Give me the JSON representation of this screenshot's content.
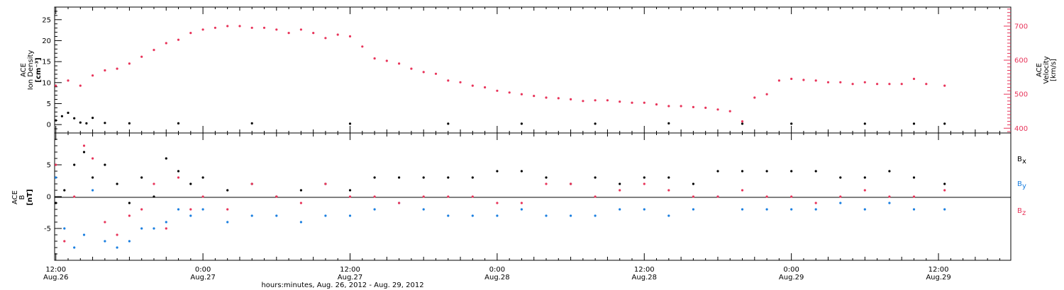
{
  "colors": {
    "black": "#000000",
    "red": "#e8345a",
    "blue": "#1a7fe0"
  },
  "xaxis": {
    "label": "hours:minutes, Aug. 26, 2012 - Aug. 29, 2012",
    "ticks": [
      {
        "hours": 12,
        "line1": "12:00",
        "line2": "Aug.26"
      },
      {
        "hours": 24,
        "line1": "0:00",
        "line2": "Aug.27"
      },
      {
        "hours": 36,
        "line1": "12:00",
        "line2": "Aug.27"
      },
      {
        "hours": 48,
        "line1": "0:00",
        "line2": "Aug.28"
      },
      {
        "hours": 60,
        "line1": "12:00",
        "line2": "Aug.28"
      },
      {
        "hours": 72,
        "line1": "0:00",
        "line2": "Aug.29"
      },
      {
        "hours": 84,
        "line1": "12:00",
        "line2": "Aug.29"
      }
    ]
  },
  "chart_data": [
    {
      "type": "scatter",
      "panel": "top",
      "x_unit": "hours since Aug. 26, 2012 00:00",
      "xlim": [
        11.9,
        89.9
      ],
      "ylabel_left": [
        "ACE",
        "Ion Density",
        "[cm⁻³]"
      ],
      "ylim_left": [
        -2,
        28
      ],
      "yticks_left": [
        0,
        5,
        10,
        15,
        20,
        25
      ],
      "ylabel_right": [
        "ACE",
        "Velocity",
        "[km/s]"
      ],
      "ylim_right": [
        386,
        756
      ],
      "yticks_right": [
        400,
        500,
        600,
        700
      ],
      "series": [
        {
          "name": "",
          "axis": "left",
          "color": "#000000",
          "x": [
            12.0,
            12.5,
            13.0,
            13.5,
            14.0,
            14.5,
            15.0,
            16.0,
            18.0,
            22.0,
            28.0,
            36.0,
            44.0,
            50.0,
            56.0,
            62.0,
            68.0,
            72.0,
            78.0,
            82.0,
            84.5
          ],
          "y": [
            1.0,
            2.0,
            2.8,
            1.5,
            0.5,
            0.3,
            1.6,
            0.4,
            0.3,
            0.3,
            0.3,
            0.2,
            0.2,
            0.2,
            0.2,
            0.3,
            0.2,
            0.2,
            0.2,
            0.2,
            0.2
          ]
        },
        {
          "name": "",
          "axis": "right",
          "color": "#e8345a",
          "x": [
            12.0,
            13.0,
            14.0,
            15.0,
            16.0,
            17.0,
            18.0,
            19.0,
            20.0,
            21.0,
            22.0,
            23.0,
            24.0,
            25.0,
            26.0,
            27.0,
            28.0,
            29.0,
            30.0,
            31.0,
            32.0,
            33.0,
            34.0,
            35.0,
            36.0,
            37.0,
            38.0,
            39.0,
            40.0,
            41.0,
            42.0,
            43.0,
            44.0,
            45.0,
            46.0,
            47.0,
            48.0,
            49.0,
            50.0,
            51.0,
            52.0,
            53.0,
            54.0,
            55.0,
            56.0,
            57.0,
            58.0,
            59.0,
            60.0,
            61.0,
            62.0,
            63.0,
            64.0,
            65.0,
            66.0,
            67.0,
            68.0,
            69.0,
            70.0,
            71.0,
            72.0,
            73.0,
            74.0,
            75.0,
            76.0,
            77.0,
            78.0,
            79.0,
            80.0,
            81.0,
            82.0,
            83.0,
            84.5
          ],
          "y": [
            525,
            540,
            525,
            555,
            570,
            575,
            590,
            610,
            630,
            650,
            660,
            680,
            690,
            695,
            700,
            700,
            695,
            695,
            690,
            680,
            690,
            680,
            665,
            675,
            670,
            640,
            605,
            598,
            590,
            575,
            565,
            560,
            540,
            535,
            525,
            520,
            510,
            505,
            500,
            495,
            490,
            488,
            485,
            480,
            482,
            482,
            478,
            475,
            475,
            470,
            465,
            465,
            462,
            460,
            455,
            450,
            420,
            490,
            500,
            540,
            545,
            542,
            540,
            535,
            535,
            530,
            535,
            530,
            530,
            530,
            545,
            530,
            525
          ]
        }
      ]
    },
    {
      "type": "scatter",
      "panel": "bottom",
      "x_unit": "hours since Aug. 26, 2012 00:00",
      "xlim": [
        11.9,
        89.9
      ],
      "ylabel": [
        "ACE",
        "B",
        "[nT]"
      ],
      "ylim": [
        -10,
        10
      ],
      "yticks": [
        -5,
        0,
        5
      ],
      "zero_line": true,
      "legend_placement": "right",
      "series": [
        {
          "name": "B",
          "sub": "x",
          "color": "#000000",
          "x": [
            12.0,
            12.7,
            13.5,
            14.3,
            15.0,
            16.0,
            17.0,
            18.0,
            19.0,
            20.0,
            21.0,
            22.0,
            23.0,
            24.0,
            26.0,
            28.0,
            30.0,
            32.0,
            34.0,
            36.0,
            38.0,
            40.0,
            42.0,
            44.0,
            46.0,
            48.0,
            50.0,
            52.0,
            54.0,
            56.0,
            58.0,
            60.0,
            62.0,
            64.0,
            66.0,
            68.0,
            70.0,
            72.0,
            74.0,
            76.0,
            78.0,
            80.0,
            82.0,
            84.5
          ],
          "y": [
            -1,
            1,
            5,
            7,
            3,
            5,
            2,
            -1,
            3,
            0,
            6,
            4,
            2,
            3,
            1,
            2,
            0,
            1,
            2,
            1,
            3,
            3,
            3,
            3,
            3,
            4,
            4,
            3,
            2,
            3,
            2,
            3,
            3,
            2,
            4,
            4,
            4,
            4,
            4,
            3,
            3,
            4,
            3,
            2
          ]
        },
        {
          "name": "B",
          "sub": "y",
          "color": "#1a7fe0",
          "x": [
            12.0,
            12.7,
            13.5,
            14.3,
            15.0,
            16.0,
            17.0,
            18.0,
            19.0,
            20.0,
            21.0,
            22.0,
            23.0,
            24.0,
            26.0,
            28.0,
            30.0,
            32.0,
            34.0,
            36.0,
            38.0,
            40.0,
            42.0,
            44.0,
            46.0,
            48.0,
            50.0,
            52.0,
            54.0,
            56.0,
            58.0,
            60.0,
            62.0,
            64.0,
            66.0,
            68.0,
            70.0,
            72.0,
            74.0,
            76.0,
            78.0,
            80.0,
            82.0,
            84.5
          ],
          "y": [
            3,
            -5,
            -8,
            -6,
            1,
            -7,
            -8,
            -7,
            -5,
            -5,
            -4,
            -2,
            -3,
            -2,
            -4,
            -3,
            -3,
            -4,
            -3,
            -3,
            -2,
            -1,
            -2,
            -3,
            -3,
            -3,
            -2,
            -3,
            -3,
            -3,
            -2,
            -2,
            -3,
            -2,
            0,
            -2,
            -2,
            -2,
            -2,
            -1,
            -2,
            -1,
            -2,
            -2
          ]
        },
        {
          "name": "B",
          "sub": "z",
          "color": "#e8345a",
          "x": [
            12.0,
            12.7,
            13.5,
            14.3,
            15.0,
            16.0,
            17.0,
            18.0,
            19.0,
            20.0,
            21.0,
            22.0,
            23.0,
            24.0,
            26.0,
            28.0,
            30.0,
            32.0,
            34.0,
            36.0,
            38.0,
            40.0,
            42.0,
            44.0,
            46.0,
            48.0,
            50.0,
            52.0,
            54.0,
            56.0,
            58.0,
            60.0,
            62.0,
            64.0,
            66.0,
            68.0,
            70.0,
            72.0,
            74.0,
            76.0,
            78.0,
            80.0,
            82.0,
            84.5
          ],
          "y": [
            5,
            -7,
            0,
            8,
            6,
            -4,
            -6,
            -3,
            -2,
            2,
            -5,
            3,
            -2,
            0,
            -2,
            2,
            0,
            -1,
            2,
            0,
            0,
            -1,
            0,
            0,
            0,
            -1,
            -1,
            2,
            2,
            0,
            1,
            2,
            1,
            0,
            0,
            1,
            0,
            0,
            -1,
            0,
            1,
            0,
            0,
            1
          ]
        }
      ]
    }
  ]
}
